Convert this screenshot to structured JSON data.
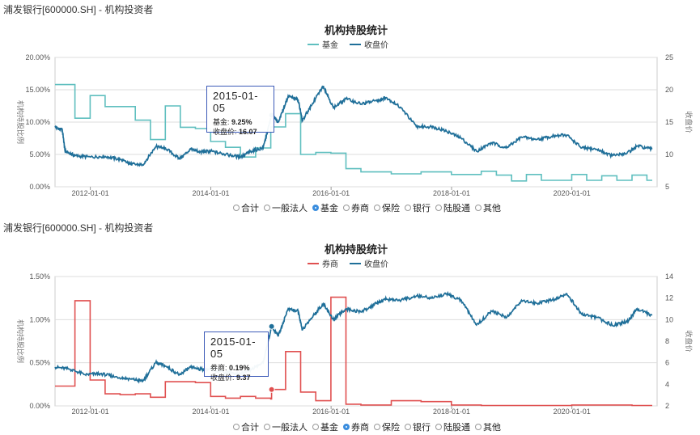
{
  "panels": [
    {
      "header": "浦发银行[600000.SH] - 机构投资者",
      "radios": [
        {
          "label": "合计",
          "selected": false
        },
        {
          "label": "一般法人",
          "selected": false
        },
        {
          "label": "基金",
          "selected": true
        },
        {
          "label": "券商",
          "selected": false
        },
        {
          "label": "保险",
          "selected": false
        },
        {
          "label": "银行",
          "selected": false
        },
        {
          "label": "陆股通",
          "selected": false
        },
        {
          "label": "其他",
          "selected": false
        }
      ],
      "tooltip": {
        "date": "2015-01-05",
        "series_label": "基金:",
        "series_value": "9.25%",
        "price_label": "收盘价:",
        "price_value": "16.07"
      }
    },
    {
      "header": "浦发银行[600000.SH] - 机构投资者",
      "radios": [
        {
          "label": "合计",
          "selected": false
        },
        {
          "label": "一般法人",
          "selected": false
        },
        {
          "label": "基金",
          "selected": false
        },
        {
          "label": "券商",
          "selected": true
        },
        {
          "label": "保险",
          "selected": false
        },
        {
          "label": "银行",
          "selected": false
        },
        {
          "label": "陆股通",
          "selected": false
        },
        {
          "label": "其他",
          "selected": false
        }
      ],
      "tooltip": {
        "date": "2015-01-05",
        "series_label": "券商:",
        "series_value": "0.19%",
        "price_label": "收盘价:",
        "price_value": "9.37"
      }
    }
  ],
  "chart_data": [
    {
      "type": "line",
      "title": "机构持股统计",
      "ylabel": "机构持股比例",
      "y2label": "收盘价",
      "legend_position": "top-center",
      "xlim": [
        "2011-06-01",
        "2021-06-01"
      ],
      "xticks": [
        "2012-01-01",
        "2014-01-01",
        "2016-01-01",
        "2018-01-01",
        "2020-01-01"
      ],
      "ylim": [
        0,
        20
      ],
      "yticks": [
        "0.00%",
        "5.00%",
        "10.00%",
        "15.00%",
        "20.00%"
      ],
      "y2lim": [
        5,
        25
      ],
      "y2ticks": [
        "5",
        "10",
        "15",
        "20",
        "25"
      ],
      "grid": true,
      "series": [
        {
          "name": "基金",
          "color": "#5fbfbf",
          "axis": "left",
          "step": true,
          "unit": "%",
          "points": [
            [
              "2011-06-01",
              15.8
            ],
            [
              "2011-09-30",
              10.6
            ],
            [
              "2011-12-31",
              14.1
            ],
            [
              "2012-03-31",
              12.4
            ],
            [
              "2012-06-30",
              12.4
            ],
            [
              "2012-09-30",
              10.3
            ],
            [
              "2012-12-31",
              7.3
            ],
            [
              "2013-03-31",
              12.5
            ],
            [
              "2013-06-30",
              9.2
            ],
            [
              "2013-09-30",
              9.0
            ],
            [
              "2013-12-31",
              7.0
            ],
            [
              "2014-03-31",
              6.1
            ],
            [
              "2014-06-30",
              4.6
            ],
            [
              "2014-09-30",
              6.0
            ],
            [
              "2014-12-31",
              9.25
            ],
            [
              "2015-03-31",
              11.3
            ],
            [
              "2015-06-30",
              5.0
            ],
            [
              "2015-09-30",
              5.3
            ],
            [
              "2015-12-31",
              5.2
            ],
            [
              "2016-03-31",
              2.8
            ],
            [
              "2016-06-30",
              2.3
            ],
            [
              "2016-12-31",
              2.0
            ],
            [
              "2017-06-30",
              2.3
            ],
            [
              "2017-12-31",
              1.9
            ],
            [
              "2018-06-30",
              2.4
            ],
            [
              "2018-09-30",
              1.8
            ],
            [
              "2018-12-31",
              0.9
            ],
            [
              "2019-03-31",
              1.9
            ],
            [
              "2019-06-30",
              1.0
            ],
            [
              "2019-12-31",
              1.9
            ],
            [
              "2020-03-31",
              1.0
            ],
            [
              "2020-06-30",
              1.7
            ],
            [
              "2020-09-30",
              1.0
            ],
            [
              "2020-12-31",
              1.8
            ],
            [
              "2021-03-31",
              1.0
            ],
            [
              "2021-05-01",
              1.0
            ]
          ]
        },
        {
          "name": "收盘价",
          "color": "#1f6f99",
          "axis": "right",
          "step": false,
          "points": [
            [
              "2011-06-01",
              14.2
            ],
            [
              "2011-07-15",
              13.8
            ],
            [
              "2011-08-01",
              10.5
            ],
            [
              "2011-10-01",
              9.8
            ],
            [
              "2012-01-01",
              9.6
            ],
            [
              "2012-04-01",
              9.7
            ],
            [
              "2012-07-01",
              9.2
            ],
            [
              "2012-09-01",
              8.5
            ],
            [
              "2012-11-15",
              8.4
            ],
            [
              "2013-02-01",
              11.2
            ],
            [
              "2013-04-01",
              11.0
            ],
            [
              "2013-06-25",
              9.3
            ],
            [
              "2013-09-01",
              10.8
            ],
            [
              "2013-11-01",
              10.4
            ],
            [
              "2014-01-01",
              10.5
            ],
            [
              "2014-04-01",
              10.0
            ],
            [
              "2014-07-01",
              9.6
            ],
            [
              "2014-09-01",
              10.5
            ],
            [
              "2014-11-15",
              11.0
            ],
            [
              "2015-01-05",
              16.07
            ],
            [
              "2015-02-15",
              15.0
            ],
            [
              "2015-04-15",
              19.0
            ],
            [
              "2015-06-15",
              18.5
            ],
            [
              "2015-07-10",
              15.2
            ],
            [
              "2015-09-01",
              17.5
            ],
            [
              "2015-11-15",
              20.6
            ],
            [
              "2016-01-15",
              17.2
            ],
            [
              "2016-04-01",
              18.6
            ],
            [
              "2016-07-01",
              17.8
            ],
            [
              "2016-10-01",
              18.3
            ],
            [
              "2016-12-01",
              18.8
            ],
            [
              "2017-03-01",
              17.2
            ],
            [
              "2017-06-01",
              14.3
            ],
            [
              "2017-09-01",
              14.3
            ],
            [
              "2017-12-01",
              13.6
            ],
            [
              "2018-03-01",
              12.5
            ],
            [
              "2018-06-01",
              10.5
            ],
            [
              "2018-09-01",
              11.8
            ],
            [
              "2018-12-01",
              11.0
            ],
            [
              "2019-03-01",
              12.7
            ],
            [
              "2019-06-01",
              12.3
            ],
            [
              "2019-09-01",
              12.8
            ],
            [
              "2019-12-01",
              13.0
            ],
            [
              "2020-03-01",
              11.0
            ],
            [
              "2020-06-01",
              10.8
            ],
            [
              "2020-09-01",
              9.8
            ],
            [
              "2020-12-01",
              10.2
            ],
            [
              "2021-02-01",
              11.3
            ],
            [
              "2021-05-01",
              10.8
            ]
          ]
        }
      ]
    },
    {
      "type": "line",
      "title": "机构持股统计",
      "ylabel": "机构持股比例",
      "y2label": "收盘价",
      "legend_position": "top-center",
      "xlim": [
        "2011-06-01",
        "2021-06-01"
      ],
      "xticks": [
        "2012-01-01",
        "2014-01-01",
        "2016-01-01",
        "2018-01-01",
        "2020-01-01"
      ],
      "ylim": [
        0,
        1.5
      ],
      "yticks": [
        "0.00%",
        "0.50%",
        "1.00%",
        "1.50%"
      ],
      "y2lim": [
        2,
        14
      ],
      "y2ticks": [
        "2",
        "4",
        "6",
        "8",
        "10",
        "12",
        "14"
      ],
      "grid": true,
      "series": [
        {
          "name": "券商",
          "color": "#e05050",
          "axis": "left",
          "step": true,
          "unit": "%",
          "points": [
            [
              "2011-06-01",
              0.23
            ],
            [
              "2011-09-30",
              1.22
            ],
            [
              "2011-12-31",
              0.3
            ],
            [
              "2012-03-31",
              0.14
            ],
            [
              "2012-06-30",
              0.13
            ],
            [
              "2012-09-30",
              0.14
            ],
            [
              "2012-12-31",
              0.1
            ],
            [
              "2013-03-31",
              0.28
            ],
            [
              "2013-06-30",
              0.28
            ],
            [
              "2013-09-30",
              0.27
            ],
            [
              "2013-12-31",
              0.11
            ],
            [
              "2014-03-31",
              0.09
            ],
            [
              "2014-06-30",
              0.11
            ],
            [
              "2014-09-30",
              0.09
            ],
            [
              "2014-12-31",
              0.08
            ],
            [
              "2015-01-05",
              0.19
            ],
            [
              "2015-03-31",
              0.63
            ],
            [
              "2015-06-30",
              0.16
            ],
            [
              "2015-09-30",
              0.06
            ],
            [
              "2015-12-31",
              1.26
            ],
            [
              "2016-03-31",
              0.02
            ],
            [
              "2016-06-30",
              0.01
            ],
            [
              "2016-12-31",
              0.06
            ],
            [
              "2017-06-30",
              0.05
            ],
            [
              "2017-12-31",
              0.01
            ],
            [
              "2018-06-30",
              0.005
            ],
            [
              "2019-06-30",
              0.005
            ],
            [
              "2019-12-31",
              0.01
            ],
            [
              "2020-12-31",
              0.005
            ],
            [
              "2021-05-01",
              0.005
            ]
          ]
        },
        {
          "name": "收盘价",
          "color": "#1f6f99",
          "axis": "right",
          "step": false,
          "points": [
            [
              "2011-06-01",
              5.6
            ],
            [
              "2011-09-01",
              5.4
            ],
            [
              "2011-12-01",
              4.9
            ],
            [
              "2012-03-01",
              5.0
            ],
            [
              "2012-06-01",
              4.7
            ],
            [
              "2012-09-01",
              4.5
            ],
            [
              "2012-11-15",
              4.3
            ],
            [
              "2013-02-01",
              6.0
            ],
            [
              "2013-04-01",
              5.7
            ],
            [
              "2013-06-25",
              4.9
            ],
            [
              "2013-09-01",
              5.6
            ],
            [
              "2013-11-01",
              5.4
            ],
            [
              "2014-01-01",
              5.4
            ],
            [
              "2014-04-01",
              5.1
            ],
            [
              "2014-07-01",
              5.0
            ],
            [
              "2014-09-01",
              5.4
            ],
            [
              "2014-11-15",
              6.0
            ],
            [
              "2015-01-05",
              9.37
            ],
            [
              "2015-02-15",
              8.5
            ],
            [
              "2015-04-15",
              11.0
            ],
            [
              "2015-06-15",
              10.8
            ],
            [
              "2015-07-10",
              9.0
            ],
            [
              "2015-09-01",
              10.1
            ],
            [
              "2015-11-15",
              11.5
            ],
            [
              "2016-01-15",
              10.0
            ],
            [
              "2016-04-01",
              11.0
            ],
            [
              "2016-07-01",
              10.7
            ],
            [
              "2016-10-01",
              11.5
            ],
            [
              "2016-12-01",
              11.9
            ],
            [
              "2017-03-01",
              11.8
            ],
            [
              "2017-06-01",
              12.2
            ],
            [
              "2017-09-01",
              12.0
            ],
            [
              "2017-12-01",
              12.4
            ],
            [
              "2018-03-01",
              11.8
            ],
            [
              "2018-06-01",
              9.5
            ],
            [
              "2018-09-01",
              10.8
            ],
            [
              "2018-12-01",
              10.2
            ],
            [
              "2019-03-01",
              11.8
            ],
            [
              "2019-06-01",
              11.5
            ],
            [
              "2019-09-01",
              11.8
            ],
            [
              "2019-12-01",
              12.4
            ],
            [
              "2020-03-01",
              10.5
            ],
            [
              "2020-06-01",
              10.2
            ],
            [
              "2020-09-01",
              9.5
            ],
            [
              "2020-12-01",
              9.8
            ],
            [
              "2021-02-01",
              11.0
            ],
            [
              "2021-05-01",
              10.4
            ]
          ]
        }
      ]
    }
  ]
}
